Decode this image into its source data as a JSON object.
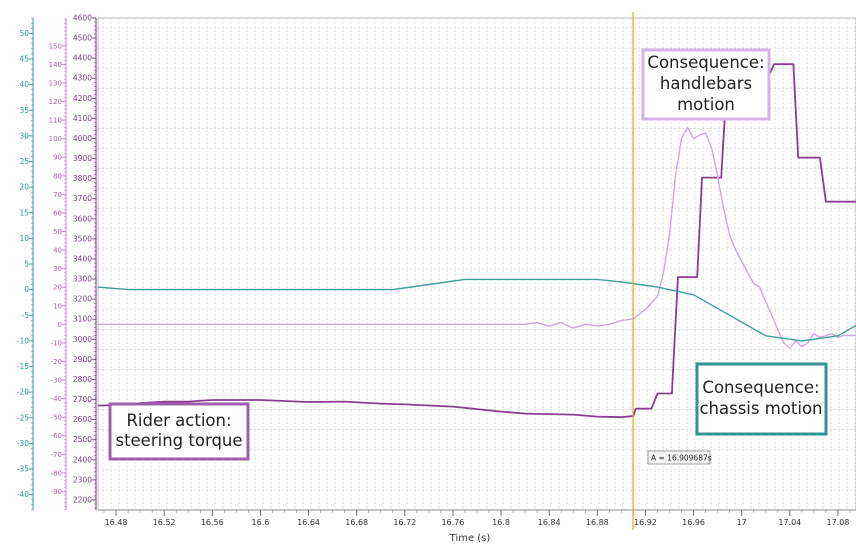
{
  "chart_data": {
    "type": "line",
    "xlabel": "Time (s)",
    "xlim": [
      16.465,
      17.095
    ],
    "x_ticks": [
      "16.48",
      "16.52",
      "16.56",
      "16.6",
      "16.64",
      "16.68",
      "16.72",
      "16.76",
      "16.8",
      "16.84",
      "16.88",
      "16.92",
      "16.96",
      "17",
      "17.04",
      "17.08"
    ],
    "y_axes": [
      {
        "id": "teal",
        "color": "#2a9d96",
        "ylim": [
          -43,
          53
        ],
        "ticks": [
          50,
          45,
          40,
          35,
          30,
          25,
          20,
          15,
          10,
          5,
          0,
          -5,
          -10,
          -15,
          -20,
          -25,
          -30,
          -35,
          -40
        ]
      },
      {
        "id": "violet",
        "color": "#c77fd2",
        "ylim": [
          -100,
          165
        ],
        "ticks": [
          150,
          140,
          130,
          120,
          110,
          100,
          90,
          80,
          70,
          60,
          50,
          40,
          30,
          20,
          10,
          0,
          -10,
          -20,
          -30,
          -40,
          -50,
          -60,
          -70,
          -80,
          -90
        ]
      },
      {
        "id": "purple",
        "color": "#7a3b86",
        "ylim": [
          2150,
          4600
        ],
        "ticks": [
          4600,
          4500,
          4400,
          4300,
          4200,
          4100,
          4000,
          3900,
          3800,
          3700,
          3600,
          3500,
          3400,
          3300,
          3200,
          3100,
          3000,
          2900,
          2800,
          2700,
          2600,
          2500,
          2400,
          2300,
          2200
        ]
      }
    ],
    "series": [
      {
        "axis": "purple",
        "color": "#8a3d91",
        "x": [
          16.465,
          16.49,
          16.5,
          16.52,
          16.54,
          16.56,
          16.6,
          16.64,
          16.67,
          16.7,
          16.72,
          16.76,
          16.8,
          16.82,
          16.86,
          16.88,
          16.9,
          16.91,
          16.912,
          16.925,
          16.93,
          16.942,
          16.947,
          16.963,
          16.967,
          16.983,
          16.987,
          17.003,
          17.007,
          17.023,
          17.027,
          17.043,
          17.047,
          17.065,
          17.07,
          17.085,
          17.09,
          17.095
        ],
        "y": [
          2670,
          2675,
          2682,
          2690,
          2690,
          2698,
          2698,
          2688,
          2690,
          2680,
          2676,
          2665,
          2640,
          2630,
          2625,
          2615,
          2612,
          2618,
          2655,
          2655,
          2730,
          2730,
          3310,
          3310,
          3805,
          3805,
          4220,
          4220,
          4320,
          4320,
          4370,
          4370,
          3905,
          3905,
          3685,
          3685,
          3685,
          3685
        ]
      },
      {
        "axis": "violet",
        "color": "#cda8e0",
        "x": [
          16.465,
          16.82,
          16.83,
          16.84,
          16.85,
          16.86,
          16.87,
          16.88,
          16.89,
          16.9,
          16.91,
          16.92,
          16.93,
          16.935,
          16.94,
          16.945,
          16.95,
          16.955,
          16.96,
          16.965,
          16.97,
          16.975,
          16.98,
          16.985,
          16.99,
          16.995,
          17.0,
          17.005,
          17.01,
          17.015,
          17.02,
          17.025,
          17.03,
          17.035,
          17.04,
          17.045,
          17.05,
          17.055,
          17.06,
          17.065,
          17.07,
          17.075,
          17.08,
          17.085,
          17.095
        ],
        "y": [
          0,
          0,
          1,
          -1,
          1,
          -2,
          0,
          -1,
          0,
          2,
          3,
          8,
          15,
          28,
          48,
          80,
          100,
          106,
          100,
          102,
          103,
          95,
          80,
          62,
          48,
          40,
          34,
          28,
          22,
          20,
          12,
          5,
          -3,
          -10,
          -13,
          -9,
          -12,
          -10,
          -5,
          -7,
          -6,
          -5,
          -7,
          -6,
          -6
        ]
      },
      {
        "axis": "teal",
        "color": "#3d9e9a",
        "x": [
          16.465,
          16.49,
          16.53,
          16.57,
          16.6,
          16.64,
          16.67,
          16.71,
          16.74,
          16.77,
          16.8,
          16.84,
          16.88,
          16.9,
          16.93,
          16.96,
          16.99,
          17.02,
          17.05,
          17.08,
          17.095
        ],
        "y": [
          0.5,
          0,
          0,
          0,
          0,
          0,
          0,
          0,
          1,
          2,
          2,
          2,
          2,
          1.5,
          0.5,
          -1,
          -5,
          -9,
          -10,
          -9,
          -7
        ]
      }
    ],
    "cursor": {
      "x": 16.909687,
      "label": "A = 16.909687s",
      "color": "#f0a020"
    },
    "annotations": [
      {
        "lines": [
          "Rider action:",
          "steering torque"
        ],
        "border_color": "#a05cae"
      },
      {
        "lines": [
          "Consequence:",
          "handlebars",
          "motion"
        ],
        "border_color": "#d4b3ea"
      },
      {
        "lines": [
          "Consequence:",
          "chassis motion"
        ],
        "border_color": "#2f9790"
      }
    ],
    "grid": true
  }
}
